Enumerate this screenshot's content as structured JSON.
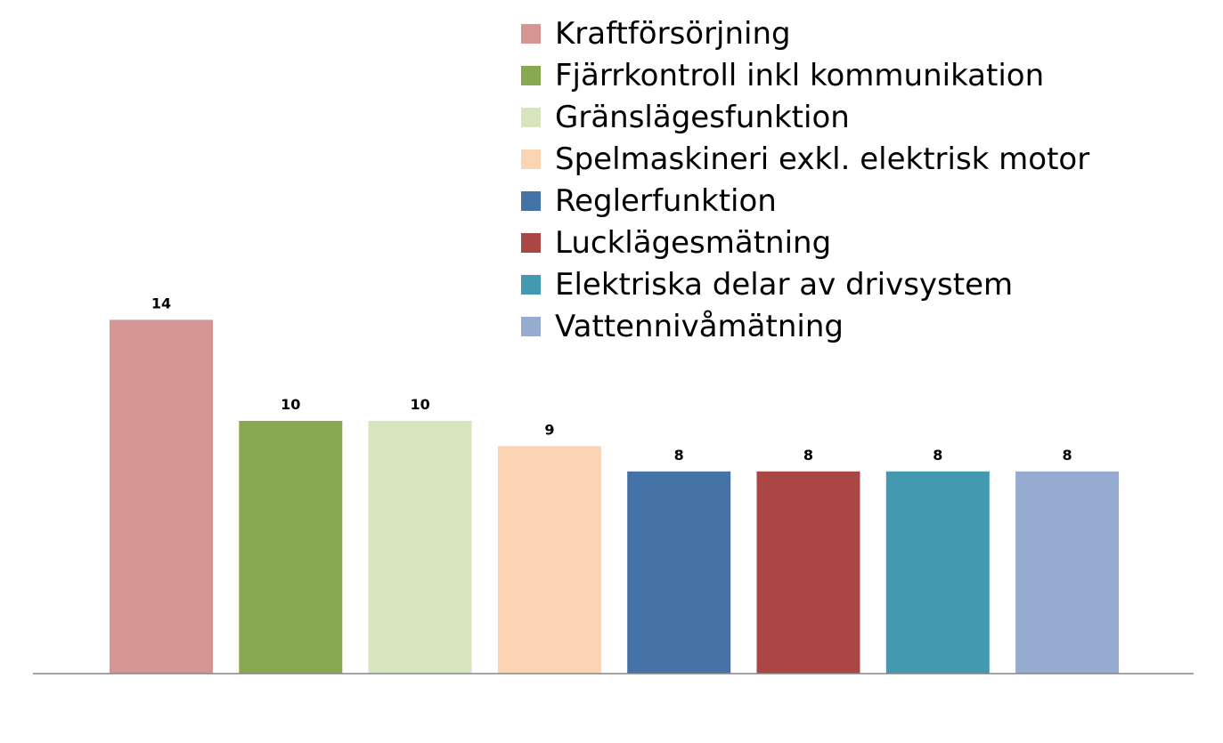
{
  "chart_data": {
    "type": "bar",
    "categories": [
      "Kraftförsörjning",
      "Fjärrkontroll inkl kommunikation",
      "Gränslägesfunktion",
      "Spelmaskineri exkl. elektrisk motor",
      "Reglerfunktion",
      "Lucklägesmätning",
      "Elektriska delar av drivsystem",
      "Vattennivåmätning"
    ],
    "values": [
      14,
      10,
      10,
      9,
      8,
      8,
      8,
      8
    ],
    "colors": [
      "#d49593",
      "#8aa84f",
      "#d8e4bd",
      "#fbd4b4",
      "#4573a7",
      "#aa4744",
      "#4299b0",
      "#96abd0"
    ],
    "ylim": [
      0,
      14
    ],
    "grid": false,
    "legend_position": "top-right",
    "data_labels": true
  }
}
